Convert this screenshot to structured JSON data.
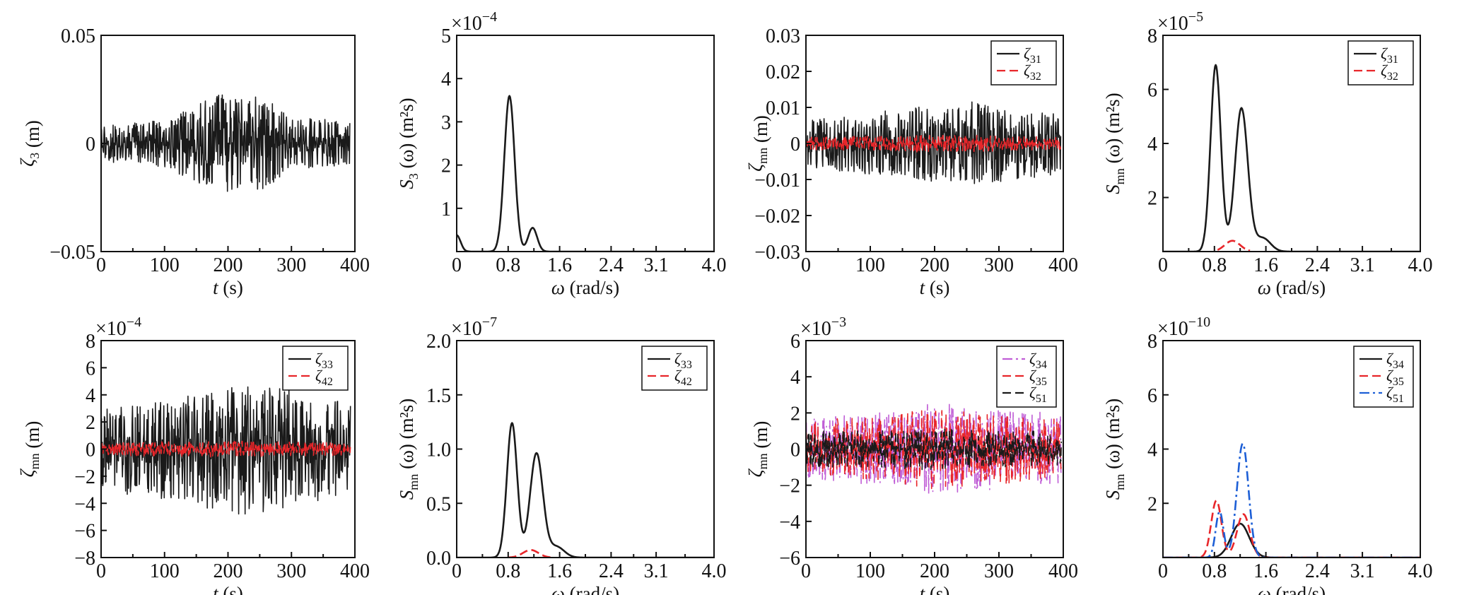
{
  "chart_data": [
    {
      "type": "line",
      "xlabel_symbol": "t",
      "xlabel_unit": " (s)",
      "ylabel_symbol": "ζ",
      "ylabel_sub": "3",
      "ylabel_unit": " (m)",
      "xlim": [
        0,
        400
      ],
      "ylim": [
        -0.05,
        0.05
      ],
      "xticks": [
        "0",
        "100",
        "200",
        "300",
        "400"
      ],
      "yticks": [
        "−0.05",
        "0",
        "0.05"
      ],
      "sci_base": "",
      "sci_exp": "",
      "series": [
        {
          "color": "#1a1a1a",
          "dash": "solid",
          "style": "noise",
          "amplitude": 0.024,
          "envelope": [
            [
              0,
              0.35
            ],
            [
              100,
              0.45
            ],
            [
              190,
              1.0
            ],
            [
              245,
              1.0
            ],
            [
              300,
              0.5
            ],
            [
              390,
              0.45
            ]
          ],
          "x_end": 392
        }
      ]
    },
    {
      "type": "line",
      "xlabel_symbol": "ω",
      "xlabel_unit": " (rad/s)",
      "ylabel_symbol": "S",
      "ylabel_sub": "3",
      "ylabel_unit": " (m²s)",
      "xlim": [
        0,
        4.0
      ],
      "ylim": [
        0,
        5
      ],
      "xticks": [
        "0",
        "0.8",
        "1.6",
        "2.4",
        "3.1",
        "4.0"
      ],
      "yticks": [
        "1",
        "2",
        "3",
        "4",
        "5"
      ],
      "sci_base": "×10",
      "sci_exp": "−4",
      "series": [
        {
          "color": "#1a1a1a",
          "dash": "solid",
          "style": "spectrum",
          "peaks": [
            [
              0.82,
              3.6,
              0.08
            ],
            [
              1.18,
              0.55,
              0.07
            ],
            [
              0.0,
              0.38,
              0.06
            ]
          ]
        }
      ]
    },
    {
      "type": "line",
      "xlabel_symbol": "t",
      "xlabel_unit": " (s)",
      "ylabel_symbol": "ζ",
      "ylabel_sub": "mn",
      "ylabel_unit": " (m)",
      "xlim": [
        0,
        400
      ],
      "ylim": [
        -0.03,
        0.03
      ],
      "xticks": [
        "0",
        "100",
        "200",
        "300",
        "400"
      ],
      "yticks": [
        "−0.03",
        "−0.02",
        "−0.01",
        "0",
        "0.01",
        "0.02",
        "0.03"
      ],
      "sci_base": "",
      "sci_exp": "",
      "legend": [
        {
          "sym": "ζ",
          "sub": "31"
        },
        {
          "sym": "ζ",
          "sub": "32"
        }
      ],
      "series": [
        {
          "color": "#1a1a1a",
          "dash": "solid",
          "style": "noise",
          "amplitude": 0.012,
          "envelope": [
            [
              0,
              0.55
            ],
            [
              150,
              0.8
            ],
            [
              240,
              1.0
            ],
            [
              400,
              0.7
            ]
          ],
          "x_end": 396
        },
        {
          "color": "#e8262a",
          "dash": "dash",
          "style": "noise",
          "amplitude": 0.0025,
          "envelope": [
            [
              0,
              0.7
            ],
            [
              200,
              1.0
            ],
            [
              400,
              0.7
            ]
          ],
          "x_end": 396
        }
      ]
    },
    {
      "type": "line",
      "xlabel_symbol": "ω",
      "xlabel_unit": " (rad/s)",
      "ylabel_symbol": "S",
      "ylabel_sub": "mn",
      "ylabel_unit": " (m²s)",
      "xlim": [
        0,
        4.0
      ],
      "ylim": [
        0,
        8
      ],
      "xticks": [
        "0",
        "0.8",
        "1.6",
        "2.4",
        "3.1",
        "4.0"
      ],
      "yticks": [
        "2",
        "4",
        "6",
        "8"
      ],
      "sci_base": "×10",
      "sci_exp": "−5",
      "legend": [
        {
          "sym": "ζ",
          "sub": "31"
        },
        {
          "sym": "ζ",
          "sub": "32"
        }
      ],
      "series": [
        {
          "color": "#1a1a1a",
          "dash": "solid",
          "style": "spectrum",
          "peaks": [
            [
              0.82,
              6.9,
              0.08
            ],
            [
              1.22,
              5.3,
              0.1
            ],
            [
              1.55,
              0.5,
              0.12
            ]
          ]
        },
        {
          "color": "#e8262a",
          "dash": "dash",
          "style": "spectrum",
          "peaks": [
            [
              1.08,
              0.4,
              0.12
            ]
          ],
          "x_range": [
            0.85,
            1.35
          ]
        }
      ]
    },
    {
      "type": "line",
      "xlabel_symbol": "t",
      "xlabel_unit": " (s)",
      "ylabel_symbol": "ζ",
      "ylabel_sub": "mn",
      "ylabel_unit": " (m)",
      "xlim": [
        0,
        400
      ],
      "ylim": [
        -8,
        8
      ],
      "xticks": [
        "0",
        "100",
        "200",
        "300",
        "400"
      ],
      "yticks": [
        "−8",
        "−6",
        "−4",
        "−2",
        "0",
        "2",
        "4",
        "6",
        "8"
      ],
      "sci_base": "×10",
      "sci_exp": "−4",
      "legend": [
        {
          "sym": "ζ",
          "sub": "33"
        },
        {
          "sym": "ζ",
          "sub": "42"
        }
      ],
      "series": [
        {
          "color": "#1a1a1a",
          "dash": "solid",
          "style": "noise",
          "amplitude": 5.0,
          "envelope": [
            [
              0,
              0.6
            ],
            [
              180,
              0.9
            ],
            [
              200,
              1.0
            ],
            [
              250,
              1.0
            ],
            [
              320,
              0.85
            ],
            [
              400,
              0.65
            ]
          ],
          "x_end": 393
        },
        {
          "color": "#e8262a",
          "dash": "dash",
          "style": "noise",
          "amplitude": 0.6,
          "envelope": [
            [
              0,
              0.8
            ],
            [
              200,
              1.0
            ],
            [
              400,
              0.8
            ]
          ],
          "x_end": 393
        }
      ]
    },
    {
      "type": "line",
      "xlabel_symbol": "ω",
      "xlabel_unit": " (rad/s)",
      "ylabel_symbol": "S",
      "ylabel_sub": "mn",
      "ylabel_unit": " (m²s)",
      "xlim": [
        0,
        4.0
      ],
      "ylim": [
        0,
        2.0
      ],
      "xticks": [
        "0",
        "0.8",
        "1.6",
        "2.4",
        "3.1",
        "4.0"
      ],
      "yticks": [
        "0.0",
        "0.5",
        "1.0",
        "1.5",
        "2.0"
      ],
      "sci_base": "×10",
      "sci_exp": "−7",
      "legend": [
        {
          "sym": "ζ",
          "sub": "33"
        },
        {
          "sym": "ζ",
          "sub": "42"
        }
      ],
      "series": [
        {
          "color": "#1a1a1a",
          "dash": "solid",
          "style": "spectrum",
          "peaks": [
            [
              0.86,
              1.24,
              0.08
            ],
            [
              1.24,
              0.96,
              0.1
            ],
            [
              1.55,
              0.1,
              0.12
            ]
          ]
        },
        {
          "color": "#e8262a",
          "dash": "dash",
          "style": "spectrum",
          "peaks": [
            [
              1.15,
              0.07,
              0.12
            ]
          ],
          "x_range": [
            0.8,
            1.5
          ]
        }
      ]
    },
    {
      "type": "line",
      "xlabel_symbol": "t",
      "xlabel_unit": " (s)",
      "ylabel_symbol": "ζ",
      "ylabel_sub": "mn",
      "ylabel_unit": " (m)",
      "xlim": [
        0,
        400
      ],
      "ylim": [
        -6,
        6
      ],
      "xticks": [
        "0",
        "100",
        "200",
        "300",
        "400"
      ],
      "yticks": [
        "−6",
        "−4",
        "−2",
        "0",
        "2",
        "4",
        "6"
      ],
      "sci_base": "×10",
      "sci_exp": "−3",
      "legend": [
        {
          "sym": "ζ",
          "sub": "34"
        },
        {
          "sym": "ζ",
          "sub": "35"
        },
        {
          "sym": "ζ",
          "sub": "51"
        }
      ],
      "series": [
        {
          "color": "#c05ed6",
          "dash": "dashdot",
          "style": "noise",
          "amplitude": 2.6,
          "envelope": [
            [
              0,
              0.7
            ],
            [
              150,
              0.8
            ],
            [
              190,
              1.0
            ],
            [
              260,
              0.9
            ],
            [
              400,
              0.75
            ]
          ],
          "x_end": 397
        },
        {
          "color": "#e8262a",
          "dash": "dash",
          "style": "noise",
          "amplitude": 2.2,
          "envelope": [
            [
              0,
              0.7
            ],
            [
              200,
              1.0
            ],
            [
              400,
              0.75
            ]
          ],
          "x_end": 397
        },
        {
          "color": "#1a1a1a",
          "dash": "dash",
          "style": "noise",
          "amplitude": 1.2,
          "envelope": [
            [
              0,
              0.8
            ],
            [
              200,
              1.0
            ],
            [
              400,
              0.8
            ]
          ],
          "x_end": 397
        }
      ]
    },
    {
      "type": "line",
      "xlabel_symbol": "ω",
      "xlabel_unit": " (rad/s)",
      "ylabel_symbol": "S",
      "ylabel_sub": "mn",
      "ylabel_unit": " (m²s)",
      "xlim": [
        0,
        4.0
      ],
      "ylim": [
        0,
        8
      ],
      "xticks": [
        "0",
        "0.8",
        "1.6",
        "2.4",
        "3.1",
        "4.0"
      ],
      "yticks": [
        "2",
        "4",
        "6",
        "8"
      ],
      "sci_base": "×10",
      "sci_exp": "−10",
      "legend": [
        {
          "sym": "ζ",
          "sub": "34"
        },
        {
          "sym": "ζ",
          "sub": "35"
        },
        {
          "sym": "ζ",
          "sub": "51"
        }
      ],
      "series": [
        {
          "color": "#1a1a1a",
          "dash": "solid",
          "style": "spectrum",
          "peaks": [
            [
              1.2,
              1.25,
              0.14
            ]
          ]
        },
        {
          "color": "#e8262a",
          "dash": "dash",
          "style": "spectrum",
          "peaks": [
            [
              0.83,
              2.1,
              0.08
            ],
            [
              1.25,
              1.6,
              0.1
            ]
          ]
        },
        {
          "color": "#1d5fd6",
          "dash": "dashdot",
          "style": "spectrum",
          "peaks": [
            [
              0.88,
              1.7,
              0.06
            ],
            [
              1.24,
              4.2,
              0.09
            ]
          ]
        }
      ]
    }
  ]
}
